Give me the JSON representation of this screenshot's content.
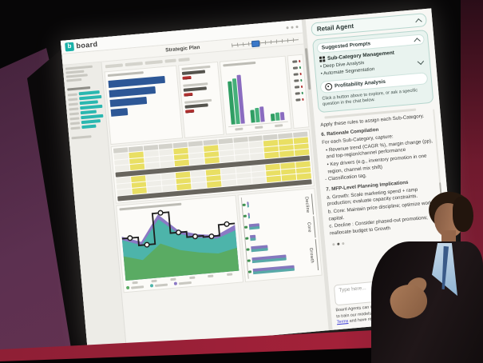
{
  "app": {
    "brand": "board",
    "brand_letter": "b",
    "title": "Strategic Plan"
  },
  "agent": {
    "title": "Retail Agent",
    "prompts_header": "Suggested Prompts",
    "prompt_group": "Sub-Category Management",
    "prompt_items": [
      "Deep Dive Analysis",
      "Automate Segmentation"
    ],
    "prompt_button2": "Profitability Analysis",
    "caption": "Click a button above to explore, or ask a specific question in the chat below.",
    "chat_lines": [
      {
        "t": "Apply these rules to assign each Sub-Category.",
        "cls": "p"
      },
      {
        "t": "6. Rationale Compilation",
        "cls": "h"
      },
      {
        "t": "For each Sub-Category, capture:",
        "cls": "p"
      },
      {
        "t": "Revenue trend (CAGR %), margin change (pp), and top-region/channel performance",
        "cls": "b"
      },
      {
        "t": "Key drivers (e.g., inventory promotion in one region, channel mix shift)",
        "cls": "b"
      },
      {
        "t": "- Classification tag.",
        "cls": "p"
      },
      {
        "t": "7. MFP-Level Planning Implications",
        "cls": "h"
      },
      {
        "t": "a. Growth: Scale marketing spend + ramp production; evaluate capacity constraints.",
        "cls": "p"
      },
      {
        "t": "b. Core: Maintain price discipline; optimize working capital.",
        "cls": "p"
      },
      {
        "t": "c. Decline : Consider phased-out promotions; reallocate budget to Growth",
        "cls": "p"
      }
    ],
    "input_placeholder": "Type here...",
    "disclaimer1": "Board Agents can make mistakes. We do not use your data to train our models.",
    "disclaimer2_prefix": "By using this chat, you agree to our ",
    "terms": "Terms",
    "disclaimer2_mid": " and have read our ",
    "privacy": "Privacy Policy",
    "disclaimer2_suffix": "."
  },
  "dashboard": {
    "sidebar_bars": [
      62,
      78,
      55,
      70,
      48,
      66,
      58,
      44
    ],
    "table": {
      "rows": 9,
      "cols": 13,
      "dark_rows": [
        4,
        8
      ],
      "yellow_cols": [
        1,
        4,
        6,
        10,
        11,
        12
      ]
    }
  },
  "chart_data": [
    {
      "id": "left-hbar-chart",
      "type": "bar",
      "orientation": "horizontal",
      "title": "",
      "categories": [
        "",
        "",
        "",
        ""
      ],
      "values": [
        86,
        70,
        56,
        26
      ],
      "color": "#2d5796"
    },
    {
      "id": "grouped-column-chart",
      "type": "bar",
      "title": "",
      "categories": [
        "",
        "",
        ""
      ],
      "series": [
        {
          "name": "series-green-1",
          "values": [
            80,
            24,
            13
          ]
        },
        {
          "name": "series-green-2",
          "values": [
            84,
            26,
            14
          ]
        },
        {
          "name": "series-purple",
          "values": [
            90,
            28,
            15
          ]
        }
      ],
      "colors": [
        "#2f9e63",
        "#45b07a",
        "#8a6cc0"
      ]
    },
    {
      "id": "stacked-area-chart",
      "type": "area",
      "title": "",
      "x": [
        "",
        "",
        "",
        "",
        "",
        "",
        ""
      ],
      "layers": [
        {
          "name": "layer-green",
          "values": [
            36,
            28,
            50,
            38,
            32,
            28,
            34
          ]
        },
        {
          "name": "layer-teal",
          "values": [
            60,
            50,
            86,
            62,
            54,
            50,
            60
          ]
        },
        {
          "name": "layer-purple",
          "values": [
            65,
            55,
            93,
            67,
            59,
            55,
            68
          ]
        }
      ],
      "line": {
        "name": "step-line",
        "values": [
          62,
          50,
          95,
          64,
          56,
          54,
          70
        ]
      },
      "colors": [
        "#5aab63",
        "#4db4aa",
        "#8b79c4"
      ],
      "line_color": "#1f1f1f"
    },
    {
      "id": "subcategory-hbar-chart",
      "type": "bar",
      "orientation": "horizontal",
      "title": "",
      "categories": [
        "",
        "",
        "",
        "",
        "",
        "",
        ""
      ],
      "values": [
        4,
        3,
        18,
        10,
        30,
        60,
        73
      ],
      "colors": [
        "#8577be",
        "#58a9a8"
      ],
      "group_labels": [
        "Decline",
        "Core",
        "Growth"
      ]
    }
  ]
}
